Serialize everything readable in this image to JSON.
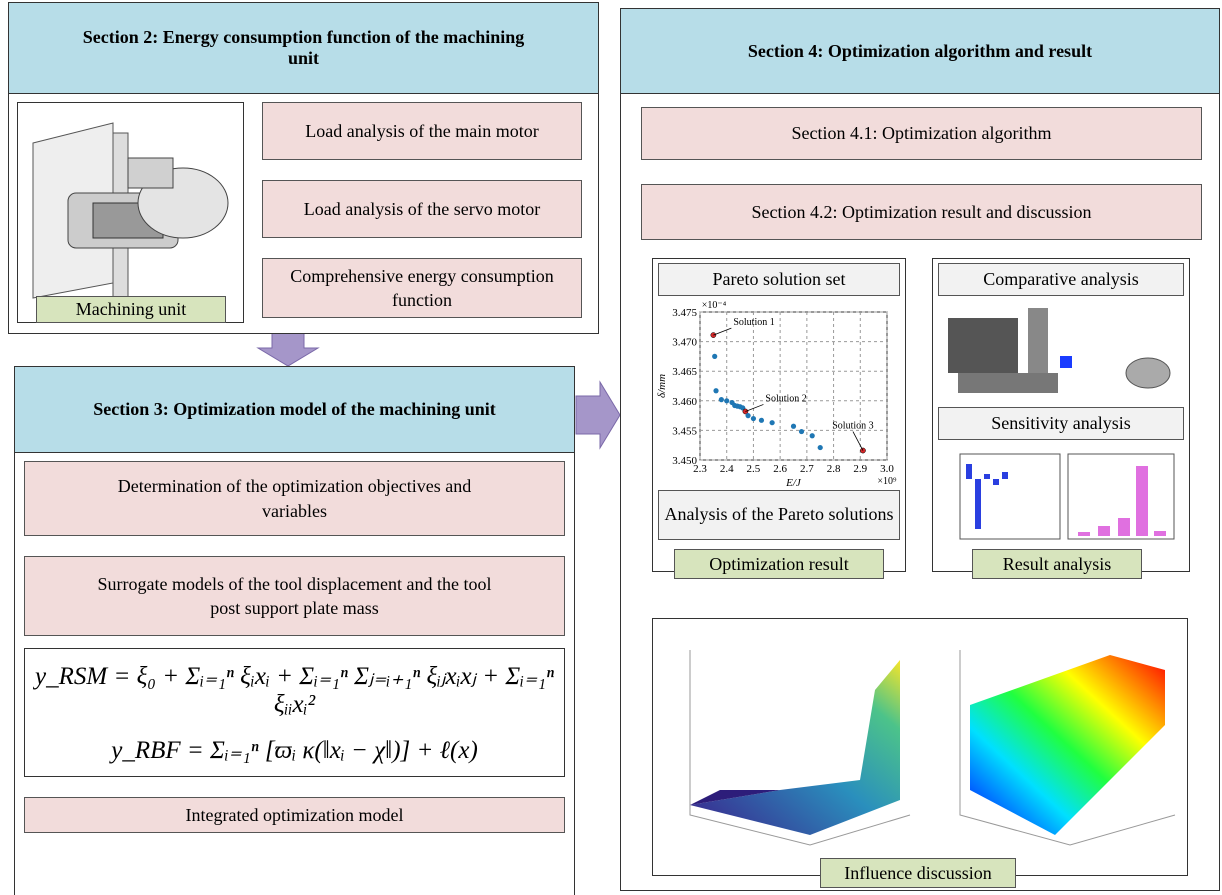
{
  "diagram": {
    "section2": {
      "title": "Section 2: Energy consumption function of the machining unit",
      "boxes": [
        "Load analysis of the main motor",
        "Load analysis of the servo motor",
        "Comprehensive energy consumption function"
      ],
      "image_label": "Machining unit"
    },
    "section3": {
      "title": "Section 3: Optimization model of the machining unit",
      "boxes": [
        "Determination of the optimization objectives and variables",
        "Surrogate models of the tool displacement and the tool post support plate mass"
      ],
      "equations": [
        "y_RSM = ξ₀ + Σᵢ₌₁ⁿ ξᵢxᵢ + Σᵢ₌₁ⁿ Σⱼ₌ᵢ₊₁ⁿ ξᵢⱼxᵢxⱼ + Σᵢ₌₁ⁿ ξᵢᵢxᵢ²",
        "y_RBF = Σᵢ₌₁ⁿ [ϖᵢ κ(‖xᵢ − χ‖)] + ℓ(x)"
      ],
      "final_box": "Integrated optimization model"
    },
    "section4": {
      "title": "Section 4: Optimization algorithm and result",
      "steps": [
        "Section  4.1: Optimization algorithm",
        "Section  4.2: Optimization result and discussion"
      ],
      "pareto_title": "Pareto solution set",
      "pareto_caption": "Analysis of the Pareto solutions",
      "pareto_label": "Optimization result",
      "result_titles": [
        "Comparative analysis",
        "Sensitivity analysis"
      ],
      "result_label": "Result analysis",
      "influence_label": "Influence discussion"
    }
  },
  "chart_data": {
    "type": "scatter",
    "x_label": "E/J",
    "y_label": "δ/mm",
    "x_multiplier": "×10⁹",
    "y_multiplier": "×10⁻⁴",
    "x": [
      2.35,
      2.355,
      2.36,
      2.38,
      2.4,
      2.42,
      2.43,
      2.44,
      2.45,
      2.46,
      2.47,
      2.48,
      2.5,
      2.53,
      2.57,
      2.65,
      2.68,
      2.72,
      2.75,
      2.91
    ],
    "values": [
      3.4711,
      3.4675,
      3.4617,
      3.4602,
      3.46,
      3.4597,
      3.4592,
      3.4591,
      3.459,
      3.4588,
      3.4582,
      3.4575,
      3.457,
      3.4567,
      3.4563,
      3.4557,
      3.4548,
      3.4541,
      3.4521,
      3.4516
    ],
    "color": "#1f77b4",
    "highlight_color": "#d62728",
    "annotations": [
      {
        "text": "Solution 1",
        "x": 2.35,
        "y": 3.4711
      },
      {
        "text": "Solution 2",
        "x": 2.47,
        "y": 3.4582
      },
      {
        "text": "Solution 3",
        "x": 2.91,
        "y": 3.4516
      }
    ],
    "xlim": [
      2.3,
      3
    ],
    "ylim": [
      3.45,
      3.475
    ],
    "xticks": [
      2.3,
      2.4,
      2.5,
      2.6,
      2.7,
      2.8,
      2.9,
      {
        "value": 3,
        "label": "3.0"
      }
    ],
    "yticks": [
      {
        "value": 3.45,
        "label": "3.450"
      },
      3.455,
      {
        "value": 3.46,
        "label": "3.460"
      },
      3.465,
      {
        "value": 3.47,
        "label": "3.470"
      },
      3.475
    ],
    "grid": true
  }
}
